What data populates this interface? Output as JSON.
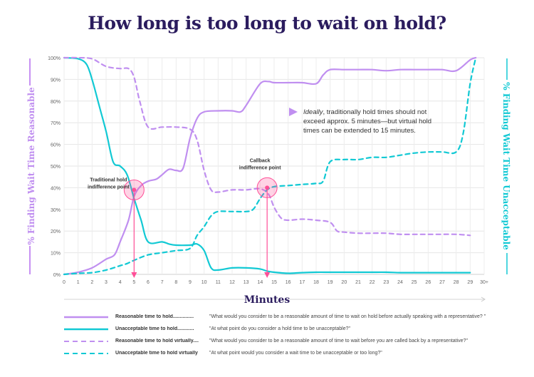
{
  "title": "How long is too long to wait on hold?",
  "colors": {
    "purple": "#c08ff0",
    "cyan": "#12c9d4",
    "pink": "#ff4f97",
    "title": "#2b1c5e"
  },
  "chart_data": {
    "type": "line",
    "xlabel": "Minutes",
    "ylabel_left": "% Finding Wait Time Reasonable",
    "ylabel_right": "% Finding Wait Time Unacceptable",
    "xlim": [
      0,
      30
    ],
    "ylim": [
      0,
      100
    ],
    "x_ticks": [
      "0",
      "1",
      "2",
      "3",
      "4",
      "5",
      "6",
      "7",
      "8",
      "9",
      "10",
      "11",
      "12",
      "13",
      "14",
      "15",
      "16",
      "17",
      "18",
      "19",
      "20",
      "21",
      "22",
      "23",
      "24",
      "25",
      "26",
      "27",
      "28",
      "29",
      "30+"
    ],
    "y_ticks": [
      "0%",
      "10%",
      "20%",
      "30%",
      "40%",
      "50%",
      "60%",
      "70%",
      "80%",
      "90%",
      "100%"
    ],
    "grid": true,
    "series": [
      {
        "name": "Reasonable time to hold...............",
        "style": "solid",
        "color": "#c08ff0",
        "points": [
          [
            0,
            0
          ],
          [
            1,
            1
          ],
          [
            2,
            3
          ],
          [
            3,
            7
          ],
          [
            3.6,
            9
          ],
          [
            4,
            15
          ],
          [
            4.6,
            25
          ],
          [
            5,
            36
          ],
          [
            5.5,
            41
          ],
          [
            6,
            43
          ],
          [
            6.6,
            44
          ],
          [
            7,
            46
          ],
          [
            7.5,
            48.5
          ],
          [
            8,
            48
          ],
          [
            8.5,
            49
          ],
          [
            9,
            63
          ],
          [
            9.5,
            72
          ],
          [
            10,
            75
          ],
          [
            11,
            75.5
          ],
          [
            12,
            75.5
          ],
          [
            12.6,
            75
          ],
          [
            13,
            78
          ],
          [
            14,
            88
          ],
          [
            14.6,
            89
          ],
          [
            15,
            88.5
          ],
          [
            16,
            88.5
          ],
          [
            17,
            88.5
          ],
          [
            18,
            88
          ],
          [
            18.5,
            92
          ],
          [
            19,
            94.5
          ],
          [
            20,
            94.5
          ],
          [
            21,
            94.5
          ],
          [
            22,
            94.5
          ],
          [
            23,
            94
          ],
          [
            24,
            94.5
          ],
          [
            25,
            94.5
          ],
          [
            26,
            94.5
          ],
          [
            27,
            94.5
          ],
          [
            28,
            94
          ],
          [
            29,
            99
          ],
          [
            29.4,
            100
          ]
        ]
      },
      {
        "name": "Unacceptable time to hold............",
        "style": "solid",
        "color": "#12c9d4",
        "points": [
          [
            0,
            100
          ],
          [
            1,
            99.5
          ],
          [
            1.6,
            97
          ],
          [
            2,
            90
          ],
          [
            2.5,
            78
          ],
          [
            3,
            66
          ],
          [
            3.5,
            52
          ],
          [
            4,
            50
          ],
          [
            4.5,
            46
          ],
          [
            5,
            35
          ],
          [
            5.5,
            25
          ],
          [
            6,
            15
          ],
          [
            7,
            15
          ],
          [
            7.5,
            14
          ],
          [
            8,
            13.5
          ],
          [
            9,
            13.5
          ],
          [
            9.5,
            14
          ],
          [
            10,
            11
          ],
          [
            10.5,
            3
          ],
          [
            11,
            2
          ],
          [
            12,
            3
          ],
          [
            13,
            3
          ],
          [
            14,
            2.5
          ],
          [
            14.5,
            1.5
          ],
          [
            15,
            1
          ],
          [
            16,
            0.5
          ],
          [
            17,
            0.8
          ],
          [
            18,
            1
          ],
          [
            19,
            1
          ],
          [
            20,
            1
          ],
          [
            21,
            1
          ],
          [
            22,
            1
          ],
          [
            23,
            1
          ],
          [
            24,
            0.8
          ],
          [
            25,
            0.8
          ],
          [
            26,
            0.8
          ],
          [
            27,
            0.8
          ],
          [
            28,
            0.8
          ],
          [
            29,
            0.8
          ]
        ]
      },
      {
        "name": "Reasonable time to hold virtually....",
        "style": "dashed",
        "color": "#c08ff0",
        "points": [
          [
            0,
            100
          ],
          [
            1,
            100
          ],
          [
            2,
            99.5
          ],
          [
            3,
            96
          ],
          [
            4,
            95
          ],
          [
            4.6,
            95
          ],
          [
            5,
            91
          ],
          [
            5.4,
            80
          ],
          [
            6,
            68
          ],
          [
            7,
            68
          ],
          [
            8,
            68
          ],
          [
            9,
            67
          ],
          [
            9.5,
            62
          ],
          [
            10,
            48
          ],
          [
            10.5,
            39
          ],
          [
            11,
            38
          ],
          [
            12,
            39
          ],
          [
            13,
            39
          ],
          [
            14,
            39.5
          ],
          [
            14.6,
            37
          ],
          [
            15,
            31
          ],
          [
            15.5,
            26
          ],
          [
            16,
            25
          ],
          [
            17,
            25.5
          ],
          [
            18,
            25
          ],
          [
            19,
            24
          ],
          [
            19.5,
            20
          ],
          [
            20,
            19.5
          ],
          [
            21,
            19
          ],
          [
            22,
            19
          ],
          [
            23,
            19
          ],
          [
            24,
            18.5
          ],
          [
            25,
            18.5
          ],
          [
            26,
            18.5
          ],
          [
            27,
            18.5
          ],
          [
            28,
            18.5
          ],
          [
            29,
            18
          ]
        ]
      },
      {
        "name": "Unacceptable time to hold virtually",
        "style": "dashed",
        "color": "#12c9d4",
        "points": [
          [
            0,
            0
          ],
          [
            1,
            0.5
          ],
          [
            2,
            0.8
          ],
          [
            3,
            2
          ],
          [
            4,
            4
          ],
          [
            4.5,
            5
          ],
          [
            5,
            6.5
          ],
          [
            6,
            9
          ],
          [
            7,
            10
          ],
          [
            8,
            11
          ],
          [
            9,
            12
          ],
          [
            9.5,
            18
          ],
          [
            10,
            22
          ],
          [
            10.5,
            27
          ],
          [
            11,
            29
          ],
          [
            12,
            29
          ],
          [
            13,
            29
          ],
          [
            13.5,
            30
          ],
          [
            14,
            35
          ],
          [
            14.5,
            39
          ],
          [
            15,
            40.5
          ],
          [
            16,
            41
          ],
          [
            17,
            41.5
          ],
          [
            18,
            42
          ],
          [
            18.5,
            43
          ],
          [
            19,
            52
          ],
          [
            20,
            53
          ],
          [
            21,
            53
          ],
          [
            22,
            54
          ],
          [
            23,
            54
          ],
          [
            24,
            55
          ],
          [
            25,
            56
          ],
          [
            26,
            56.5
          ],
          [
            27,
            56.5
          ],
          [
            28,
            56.5
          ],
          [
            28.5,
            65
          ],
          [
            29,
            88
          ],
          [
            29.4,
            100
          ]
        ]
      }
    ],
    "annotations": [
      {
        "label_lines": [
          "Traditional hold",
          "indifference point"
        ],
        "x": 5,
        "y": 39
      },
      {
        "label_lines": [
          "Callback",
          "indifference point"
        ],
        "x": 14.5,
        "y": 40
      }
    ],
    "callout_lines": [
      {
        "text": "Ideally",
        "rest": ", traditionally hold times should not"
      },
      {
        "text": "",
        "rest": "exceed approx. 5 minutes—but virtual hold"
      },
      {
        "text": "",
        "rest": "times can be extended to 15 minutes."
      }
    ]
  },
  "legend": [
    {
      "label": "Reasonable time to hold...............",
      "question": "\"What would you consider to be a reasonable amount of time to wait on hold before actually speaking with a representative? \""
    },
    {
      "label": "Unacceptable time to hold............",
      "question": "\"At what point do you consider a hold time to be unacceptable?\""
    },
    {
      "label": "Reasonable time to hold virtually....",
      "question": "\"What would you consider to be a reasonable amount of time to wait before you are called back by a representative?\""
    },
    {
      "label": "Unacceptable time to hold virtually",
      "question": "\"At what point would you consider a wait time to be unacceptable or too long?\""
    }
  ]
}
